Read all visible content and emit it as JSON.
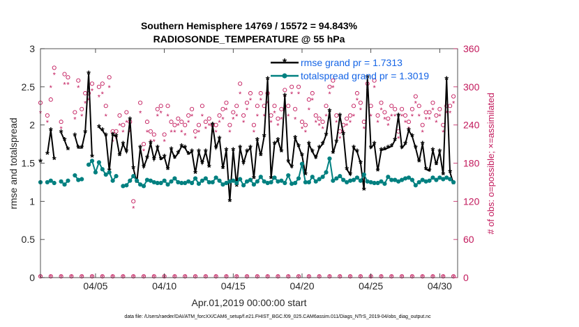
{
  "chart_data": {
    "type": "line",
    "title_line1": "Southern Hemisphere 14769 / 15572 = 94.843%",
    "title_line2": "RADIOSONDE_TEMPERATURE @ 55 hPa",
    "xlabel": "Apr.01,2019 00:00:00 start",
    "ylabel": "rmse and totalspread",
    "y2label": "# of obs: o=possible; ×=assimilated",
    "footnote": "data file: /Users/raeder/DAI/ATM_forcXX/CAM6_setup/f.e21.FHIST_BGC.f09_025.CAM6assim.011/Diags_NTrS_2019-04/obs_diag_output.nc",
    "xlim": [
      1,
      31.3
    ],
    "ylim": [
      0,
      3
    ],
    "y2lim": [
      0,
      360
    ],
    "x_ticks": [
      5,
      10,
      15,
      20,
      25,
      30
    ],
    "x_tick_labels": [
      "04/05",
      "04/10",
      "04/15",
      "04/20",
      "04/25",
      "04/30"
    ],
    "y_ticks": [
      "0",
      "0.5",
      "1",
      "1.5",
      "2",
      "2.5",
      "3"
    ],
    "y2_ticks": [
      "0",
      "60",
      "120",
      "180",
      "240",
      "300",
      "360"
    ],
    "x": [
      1.0,
      1.25,
      1.5,
      1.75,
      2.0,
      2.25,
      2.5,
      2.75,
      3.0,
      3.25,
      3.5,
      3.75,
      4.0,
      4.25,
      4.5,
      4.75,
      5.0,
      5.25,
      5.5,
      5.75,
      6.0,
      6.25,
      6.5,
      6.75,
      7.0,
      7.25,
      7.5,
      7.75,
      8.0,
      8.25,
      8.5,
      8.75,
      9.0,
      9.25,
      9.5,
      9.75,
      10.0,
      10.25,
      10.5,
      10.75,
      11.0,
      11.25,
      11.5,
      11.75,
      12.0,
      12.25,
      12.5,
      12.75,
      13.0,
      13.25,
      13.5,
      13.75,
      14.0,
      14.25,
      14.5,
      14.75,
      15.0,
      15.25,
      15.5,
      15.75,
      16.0,
      16.25,
      16.5,
      16.75,
      17.0,
      17.25,
      17.5,
      17.75,
      18.0,
      18.25,
      18.5,
      18.75,
      19.0,
      19.25,
      19.5,
      19.75,
      20.0,
      20.25,
      20.5,
      20.75,
      21.0,
      21.25,
      21.5,
      21.75,
      22.0,
      22.25,
      22.5,
      22.75,
      23.0,
      23.25,
      23.5,
      23.75,
      24.0,
      24.25,
      24.5,
      24.75,
      25.0,
      25.25,
      25.5,
      25.75,
      26.0,
      26.25,
      26.5,
      26.75,
      27.0,
      27.25,
      27.5,
      27.75,
      28.0,
      28.25,
      28.5,
      28.75,
      29.0,
      29.25,
      29.5,
      29.75,
      30.0,
      30.25,
      30.5,
      30.75,
      31.0
    ],
    "series": [
      {
        "name": "rmse grand pr = 1.7313",
        "color": "#000000",
        "marker": "star",
        "axis": "left",
        "values": [
          1.52,
          null,
          1.62,
          1.93,
          1.55,
          null,
          1.9,
          1.8,
          1.68,
          null,
          1.86,
          1.7,
          1.7,
          1.9,
          2.67,
          1.58,
          null,
          1.97,
          1.93,
          1.86,
          1.4,
          1.87,
          1.85,
          1.6,
          1.75,
          1.65,
          2.07,
          1.43,
          1.25,
          1.7,
          1.45,
          1.57,
          1.76,
          1.55,
          1.7,
          1.55,
          1.58,
          1.42,
          1.68,
          1.57,
          1.63,
          1.72,
          1.7,
          1.62,
          1.65,
          1.37,
          1.65,
          1.5,
          1.65,
          1.45,
          2.0,
          1.7,
          1.82,
          1.43,
          1.67,
          1.0,
          1.67,
          1.2,
          1.7,
          1.5,
          1.65,
          1.7,
          1.3,
          1.8,
          1.6,
          1.85,
          2.6,
          1.3,
          1.75,
          1.8,
          1.65,
          2.38,
          1.52,
          1.45,
          1.83,
          1.72,
          1.6,
          1.35,
          1.75,
          1.65,
          1.57,
          1.7,
          1.75,
          1.87,
          2.18,
          1.63,
          1.78,
          2.12,
          1.88,
          1.42,
          1.35,
          1.7,
          1.65,
          1.5,
          1.15,
          2.62,
          1.7,
          1.75,
          1.4,
          1.67,
          1.68,
          1.7,
          1.72,
          1.8,
          2.12,
          1.7,
          1.75,
          1.93,
          1.85,
          1.7,
          1.52,
          1.75,
          1.42,
          1.4,
          1.67,
          1.48,
          1.65,
          1.35,
          2.6,
          1.38,
          1.23
        ],
        "grand_label": "rmse grand pr = 1.7313"
      },
      {
        "name": "totalspread grand pr = 1.3019",
        "color": "#008080",
        "marker": "dot",
        "axis": "left",
        "values": [
          1.25,
          null,
          1.25,
          1.27,
          1.24,
          null,
          1.26,
          1.22,
          1.27,
          null,
          1.34,
          1.28,
          1.29,
          null,
          1.48,
          1.53,
          1.38,
          1.51,
          1.42,
          1.35,
          1.38,
          1.27,
          1.33,
          null,
          1.2,
          1.21,
          1.27,
          1.33,
          1.27,
          1.22,
          1.2,
          1.28,
          1.27,
          1.25,
          1.24,
          1.24,
          1.27,
          1.22,
          1.26,
          1.3,
          1.25,
          1.24,
          1.24,
          1.26,
          1.24,
          1.3,
          1.23,
          1.27,
          1.3,
          1.25,
          1.25,
          1.31,
          1.27,
          1.22,
          1.24,
          1.26,
          1.27,
          1.24,
          1.29,
          1.21,
          1.26,
          1.28,
          1.22,
          1.26,
          1.32,
          1.26,
          1.24,
          1.25,
          1.31,
          1.26,
          1.27,
          1.24,
          1.34,
          1.23,
          1.24,
          1.3,
          1.49,
          1.25,
          1.25,
          1.32,
          1.26,
          1.29,
          1.32,
          1.38,
          1.56,
          1.27,
          1.3,
          1.33,
          1.28,
          1.25,
          1.27,
          1.28,
          1.31,
          1.27,
          1.35,
          1.26,
          1.25,
          1.24,
          1.24,
          1.26,
          1.23,
          1.32,
          1.28,
          1.28,
          1.26,
          1.28,
          1.3,
          1.31,
          1.28,
          1.21,
          1.25,
          1.28,
          1.26,
          1.27,
          1.31,
          1.28,
          1.31,
          1.29,
          1.31,
          1.29,
          1.25
        ],
        "grand_label": "totalspread grand pr = 1.3019"
      }
    ],
    "obs_possible": {
      "name": "# obs possible",
      "color": "#c2185b",
      "marker": "circle",
      "axis": "right",
      "values": [
        275,
        null,
        255,
        280,
        330,
        null,
        245,
        320,
        315,
        null,
        260,
        310,
        265,
        290,
        290,
        305,
        null,
        300,
        305,
        270,
        315,
        230,
        230,
        255,
        240,
        260,
        245,
        120,
        null,
        275,
        210,
        245,
        230,
        225,
        265,
        270,
        225,
        270,
        245,
        240,
        250,
        245,
        240,
        255,
        265,
        230,
        240,
        270,
        245,
        250,
        240,
        240,
        255,
        265,
        275,
        240,
        260,
        270,
        305,
        255,
        275,
        290,
        240,
        270,
        290,
        270,
        290,
        255,
        270,
        250,
        265,
        295,
        270,
        300,
        265,
        300,
        245,
        240,
        280,
        290,
        255,
        250,
        245,
        270,
        300,
        310,
        255,
        230,
        240,
        250,
        255,
        270,
        290,
        275,
        245,
        305,
        270,
        310,
        255,
        275,
        260,
        250,
        270,
        265,
        230,
        265,
        255,
        245,
        265,
        285,
        270,
        240,
        260,
        260,
        275,
        255,
        265,
        240,
        270,
        270,
        285
      ],
      "flat_value": 2
    },
    "obs_assimilated": {
      "name": "# obs assimilated",
      "color": "#c2185b",
      "marker": "asterisk",
      "axis": "right",
      "values": [
        260,
        null,
        245,
        300,
        320,
        null,
        235,
        305,
        305,
        null,
        250,
        300,
        255,
        275,
        280,
        295,
        null,
        285,
        290,
        255,
        300,
        215,
        220,
        240,
        230,
        245,
        230,
        110,
        null,
        260,
        200,
        230,
        215,
        215,
        255,
        260,
        215,
        255,
        230,
        230,
        240,
        230,
        225,
        245,
        255,
        220,
        230,
        255,
        235,
        240,
        230,
        230,
        245,
        250,
        265,
        230,
        250,
        255,
        290,
        245,
        265,
        280,
        230,
        255,
        280,
        255,
        275,
        245,
        260,
        240,
        250,
        285,
        255,
        290,
        250,
        290,
        235,
        230,
        265,
        280,
        245,
        240,
        235,
        255,
        290,
        300,
        245,
        220,
        230,
        240,
        245,
        255,
        280,
        265,
        235,
        295,
        255,
        300,
        245,
        265,
        250,
        240,
        255,
        255,
        220,
        255,
        245,
        235,
        255,
        275,
        255,
        230,
        250,
        250,
        265,
        245,
        255,
        230,
        260,
        260,
        275
      ],
      "flat_value": 2
    }
  }
}
